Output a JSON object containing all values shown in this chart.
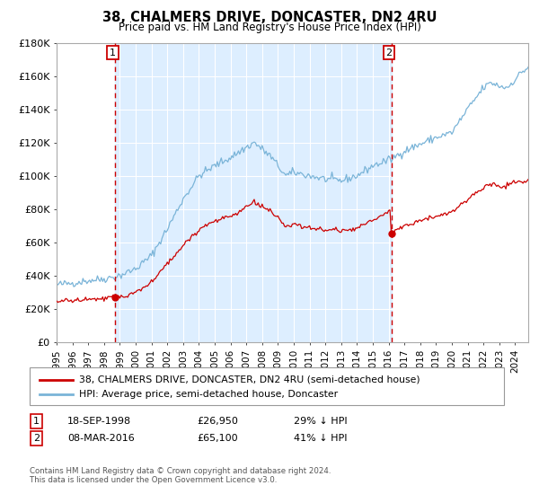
{
  "title": "38, CHALMERS DRIVE, DONCASTER, DN2 4RU",
  "subtitle": "Price paid vs. HM Land Registry's House Price Index (HPI)",
  "hpi_label": "HPI: Average price, semi-detached house, Doncaster",
  "property_label": "38, CHALMERS DRIVE, DONCASTER, DN2 4RU (semi-detached house)",
  "sale1_date": "18-SEP-1998",
  "sale1_price": 26950,
  "sale1_pct": "29% ↓ HPI",
  "sale2_date": "08-MAR-2016",
  "sale2_price": 65100,
  "sale2_pct": "41% ↓ HPI",
  "footer": "Contains HM Land Registry data © Crown copyright and database right 2024.\nThis data is licensed under the Open Government Licence v3.0.",
  "hpi_color": "#7ab4d8",
  "property_color": "#cc0000",
  "vline_color": "#cc0000",
  "marker_color": "#cc0000",
  "bg_color": "#ddeeff",
  "chart_bg": "#ffffff",
  "grid_color": "#ffffff",
  "ylim": [
    0,
    180000
  ],
  "yticks": [
    0,
    20000,
    40000,
    60000,
    80000,
    100000,
    120000,
    140000,
    160000,
    180000
  ],
  "xlim_start": 1995.0,
  "xlim_end": 2024.83,
  "sale1_year": 1998.71,
  "sale2_year": 2016.17
}
